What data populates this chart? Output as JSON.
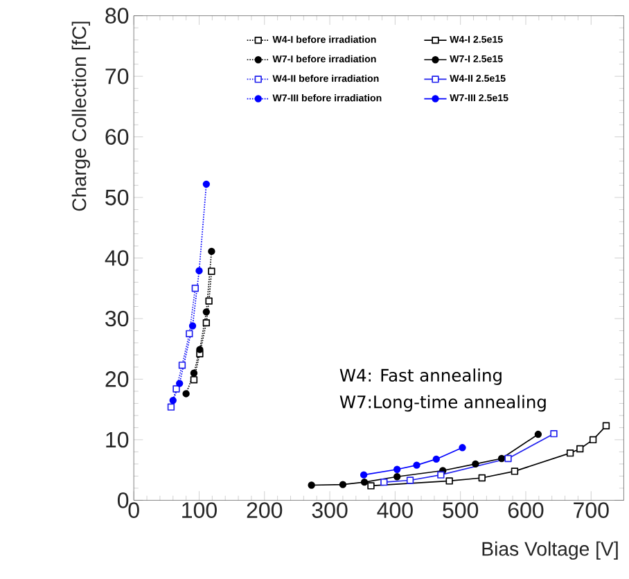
{
  "chart_data": {
    "type": "line",
    "xlabel": "Bias Voltage [V]",
    "ylabel": "Charge Collection [fC]",
    "xlim": [
      0,
      750
    ],
    "ylim": [
      0,
      80
    ],
    "xticks": [
      0,
      100,
      200,
      300,
      400,
      500,
      600,
      700
    ],
    "yticks": [
      0,
      10,
      20,
      30,
      40,
      50,
      60,
      70,
      80
    ],
    "legend": "top",
    "grid": false,
    "annotations": [
      "W4: Fast annealing",
      "W7:Long-time annealing"
    ],
    "series": [
      {
        "name": "W4-I before irradiation",
        "color": "#000000",
        "marker": "square",
        "line_style": "dotted",
        "x": [
          92,
          101,
          111,
          115,
          119
        ],
        "values": [
          19.9,
          24.2,
          29.3,
          32.9,
          37.8
        ]
      },
      {
        "name": "W4-I 2.5e15",
        "color": "#000000",
        "marker": "square",
        "line_style": "solid",
        "x": [
          363,
          483,
          533,
          583,
          668,
          683,
          703,
          723
        ],
        "values": [
          2.4,
          3.2,
          3.7,
          4.8,
          7.8,
          8.5,
          10,
          12.3
        ]
      },
      {
        "name": "W7-I before irradiation",
        "color": "#000000",
        "marker": "circle",
        "line_style": "dotted",
        "x": [
          80,
          92,
          101,
          111,
          119
        ],
        "values": [
          17.6,
          21,
          24.9,
          31.1,
          41.1
        ]
      },
      {
        "name": "W7-I 2.5e15",
        "color": "#000000",
        "marker": "circle",
        "line_style": "solid",
        "x": [
          272,
          320,
          353,
          403,
          473,
          523,
          563,
          619
        ],
        "values": [
          2.5,
          2.6,
          3.0,
          3.9,
          4.9,
          6.0,
          6.9,
          10.9
        ]
      },
      {
        "name": "W4-II before irradiation",
        "color": "#2222ee",
        "marker": "square",
        "line_style": "dotted",
        "x": [
          57,
          65,
          74,
          85,
          94
        ],
        "values": [
          15.4,
          18.4,
          22.3,
          27.5,
          35
        ]
      },
      {
        "name": "W4-II 2.5e15",
        "color": "#2222ee",
        "marker": "square",
        "line_style": "solid",
        "x": [
          383,
          423,
          470,
          573,
          643
        ],
        "values": [
          3.0,
          3.3,
          4.2,
          6.9,
          11.0
        ]
      },
      {
        "name": "W7-III before irradiation",
        "color": "#0000ff",
        "marker": "circle",
        "line_style": "dotted",
        "x": [
          60,
          70,
          90,
          100,
          111
        ],
        "values": [
          16.5,
          19.3,
          28.8,
          37.9,
          52.2
        ]
      },
      {
        "name": "W7-III 2.5e15",
        "color": "#0000ff",
        "marker": "circle",
        "line_style": "solid",
        "x": [
          352,
          403,
          433,
          463,
          503
        ],
        "values": [
          4.2,
          5.1,
          5.8,
          6.8,
          8.7
        ]
      }
    ]
  }
}
